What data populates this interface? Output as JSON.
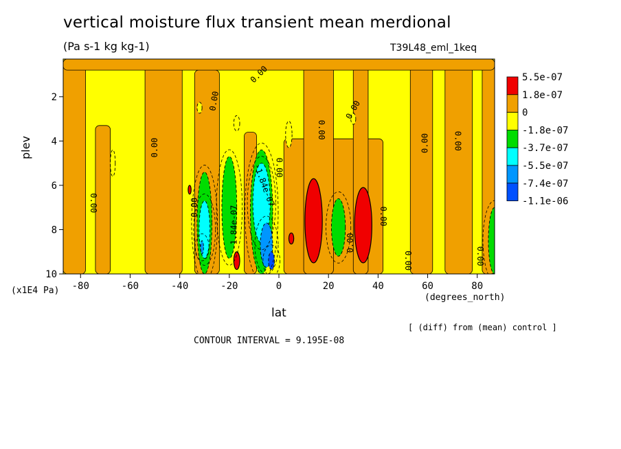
{
  "figure": {
    "title": "vertical moisture flux transient mean merdional",
    "units": "(Pa s-1 kg kg-1)",
    "experiment": "T39L48_eml_1keq",
    "comparison": "[ (diff) from (mean) control ]",
    "contour_interval": "CONTOUR INTERVAL = 9.195E-08"
  },
  "chart_data": {
    "type": "heatmap",
    "xlabel": "lat",
    "x_unit": "(degrees_north)",
    "ylabel": "plev",
    "y_unit": "(x1E4 Pa)",
    "xlim": [
      -87,
      87
    ],
    "ylim": [
      10,
      0.3
    ],
    "x_ticks": [
      -80,
      -60,
      -40,
      -20,
      0,
      20,
      40,
      60,
      80
    ],
    "x_tick_labels": [
      "-80",
      "-60",
      "-40",
      "-20",
      "0",
      "20",
      "40",
      "60",
      "80"
    ],
    "y_ticks": [
      2,
      4,
      6,
      8,
      10
    ],
    "y_tick_labels": [
      "2",
      "4",
      "6",
      "8",
      "10"
    ],
    "colorbar": {
      "labels": [
        "5.5e-07",
        "1.8e-07",
        "0",
        "-1.8e-07",
        "-3.7e-07",
        "-5.5e-07",
        "-7.4e-07",
        "-1.1e-06"
      ],
      "colors": [
        "#f00000",
        "#f0a000",
        "#ffff00",
        "#00dc00",
        "#00ffff",
        "#0096ff",
        "#0050ff"
      ]
    },
    "contour_labels": [
      {
        "text": "0.00",
        "lat": -75,
        "plev": 6.8,
        "rot": 90
      },
      {
        "text": "0.00",
        "lat": -50,
        "plev": 4.3,
        "rot": -90
      },
      {
        "text": "0.00",
        "lat": -34,
        "plev": 7.0,
        "rot": -90
      },
      {
        "text": "0.00",
        "lat": -26,
        "plev": 2.2,
        "rot": -80
      },
      {
        "text": "-1.84e-07",
        "lat": -18,
        "plev": 7.9,
        "rot": -90
      },
      {
        "text": "0.00",
        "lat": -8,
        "plev": 1.0,
        "rot": -45
      },
      {
        "text": "-1.84e-07",
        "lat": -6,
        "plev": 6.0,
        "rot": 70
      },
      {
        "text": "0.00",
        "lat": 0,
        "plev": 5.2,
        "rot": 90
      },
      {
        "text": "0.00",
        "lat": 17,
        "plev": 3.5,
        "rot": 90
      },
      {
        "text": "0.00",
        "lat": 30,
        "plev": 2.6,
        "rot": -60
      },
      {
        "text": "0.00",
        "lat": 29,
        "plev": 8.6,
        "rot": -90
      },
      {
        "text": "0.00",
        "lat": 42,
        "plev": 7.4,
        "rot": 90
      },
      {
        "text": "0.00",
        "lat": 59,
        "plev": 4.1,
        "rot": -90
      },
      {
        "text": "0.00",
        "lat": 72,
        "plev": 4.0,
        "rot": 90
      },
      {
        "text": "0.00",
        "lat": 52,
        "plev": 9.4,
        "rot": 90
      },
      {
        "text": "0.00",
        "lat": 81,
        "plev": 9.2,
        "rot": 90
      }
    ],
    "blobs": [
      {
        "level": 1,
        "lat": 14,
        "plev": 7.6,
        "rlat": 3.5,
        "rplev": 1.9
      },
      {
        "level": 1,
        "lat": 34,
        "plev": 7.8,
        "rlat": 3.5,
        "rplev": 1.7
      },
      {
        "level": 1,
        "lat": 5,
        "plev": 8.4,
        "rlat": 1.0,
        "rplev": 0.25
      },
      {
        "level": 1,
        "lat": -17,
        "plev": 9.4,
        "rlat": 1.2,
        "rplev": 0.4
      },
      {
        "level": 1,
        "lat": -36,
        "plev": 6.2,
        "rlat": 0.6,
        "rplev": 0.2
      },
      {
        "level": -1,
        "lat": -32,
        "plev": 2.5,
        "rlat": 1.0,
        "rplev": 0.25
      },
      {
        "level": -1,
        "lat": -17,
        "plev": 3.2,
        "rlat": 1.2,
        "rplev": 0.35
      },
      {
        "level": -1,
        "lat": -67,
        "plev": 5.0,
        "rlat": 1.0,
        "rplev": 0.6
      },
      {
        "level": -1,
        "lat": 4,
        "plev": 3.7,
        "rlat": 1.3,
        "rplev": 0.6
      },
      {
        "level": -1,
        "lat": 30,
        "plev": 3.0,
        "rlat": 1.0,
        "rplev": 0.25
      },
      {
        "level": -2,
        "lat": -30,
        "plev": 7.7,
        "rlat": 3.0,
        "rplev": 2.3
      },
      {
        "level": -2,
        "lat": -20,
        "plev": 7.0,
        "rlat": 3.0,
        "rplev": 2.3
      },
      {
        "level": -2,
        "lat": -7,
        "plev": 7.2,
        "rlat": 4.5,
        "rplev": 2.8
      },
      {
        "level": -2,
        "lat": 24,
        "plev": 7.9,
        "rlat": 2.8,
        "rplev": 1.3
      },
      {
        "level": -2,
        "lat": 87,
        "plev": 8.5,
        "rlat": 2.5,
        "rplev": 1.5
      },
      {
        "level": -3,
        "lat": -30,
        "plev": 8.0,
        "rlat": 2.2,
        "rplev": 1.3
      },
      {
        "level": -3,
        "lat": -7,
        "plev": 6.8,
        "rlat": 3.5,
        "rplev": 1.8
      },
      {
        "level": -4,
        "lat": -5,
        "plev": 8.7,
        "rlat": 2.5,
        "rplev": 1.0
      },
      {
        "level": -4,
        "lat": -31,
        "plev": 8.8,
        "rlat": 0.6,
        "rplev": 0.3
      },
      {
        "level": -5,
        "lat": -3,
        "plev": 9.4,
        "rlat": 1.2,
        "rplev": 0.4
      }
    ],
    "positive_bands": [
      {
        "lat0": -87,
        "lat1": -78,
        "p_top": 0.3
      },
      {
        "lat0": -74,
        "lat1": -68,
        "p_top": 3.3
      },
      {
        "lat0": -54,
        "lat1": -39,
        "p_top": 0.3
      },
      {
        "lat0": -34,
        "lat1": -24,
        "p_top": 0.8
      },
      {
        "lat0": -14,
        "lat1": -9,
        "p_top": 3.6
      },
      {
        "lat0": 2,
        "lat1": 42,
        "p_top": 3.9
      },
      {
        "lat0": 10,
        "lat1": 22,
        "p_top": 0.3
      },
      {
        "lat0": 30,
        "lat1": 36,
        "p_top": 0.3
      },
      {
        "lat0": 53,
        "lat1": 62,
        "p_top": 0.3
      },
      {
        "lat0": 67,
        "lat1": 78,
        "p_top": 0.3
      },
      {
        "lat0": 82,
        "lat1": 87,
        "p_top": 0.3
      },
      {
        "lat0": -87,
        "lat1": 87,
        "p_top": 0.3,
        "p_bot": 0.8
      }
    ]
  }
}
